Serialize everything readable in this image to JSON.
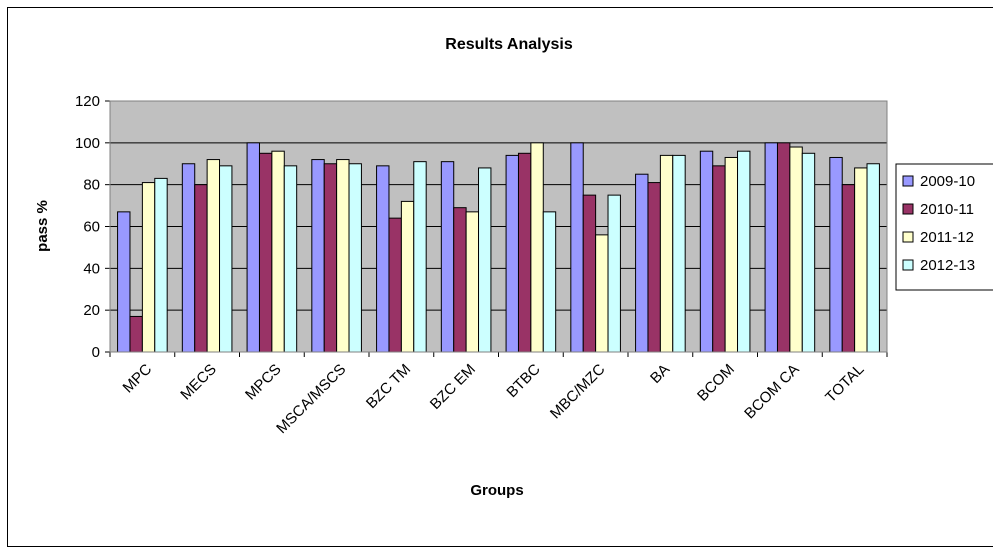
{
  "chart_data": {
    "type": "bar",
    "title": "Results Analysis",
    "xlabel": "Groups",
    "ylabel": "pass %",
    "ylim": [
      0,
      120
    ],
    "yticks": [
      0,
      20,
      40,
      60,
      80,
      100,
      120
    ],
    "grid": true,
    "legend_position": "right",
    "categories": [
      "MPC",
      "MECS",
      "MPCS",
      "MSCA/MSCS",
      "BZC TM",
      "BZC EM",
      "BTBC",
      "MBC/MZC",
      "BA",
      "BCOM",
      "BCOM CA",
      "TOTAL"
    ],
    "series": [
      {
        "name": "2009-10",
        "color": "#9999ff",
        "values": [
          67,
          90,
          100,
          92,
          89,
          91,
          94,
          100,
          85,
          96,
          100,
          93
        ]
      },
      {
        "name": "2010-11",
        "color": "#993366",
        "values": [
          17,
          80,
          95,
          90,
          64,
          69,
          95,
          75,
          81,
          89,
          100,
          80
        ]
      },
      {
        "name": "2011-12",
        "color": "#ffffcc",
        "values": [
          81,
          92,
          96,
          92,
          72,
          67,
          100,
          56,
          94,
          93,
          98,
          88
        ]
      },
      {
        "name": "2012-13",
        "color": "#ccffff",
        "values": [
          83,
          89,
          89,
          90,
          91,
          88,
          67,
          75,
          94,
          96,
          95,
          90
        ]
      }
    ],
    "plot_background": "#c0c0c0",
    "upper_band_background": "#c0c0c0"
  }
}
